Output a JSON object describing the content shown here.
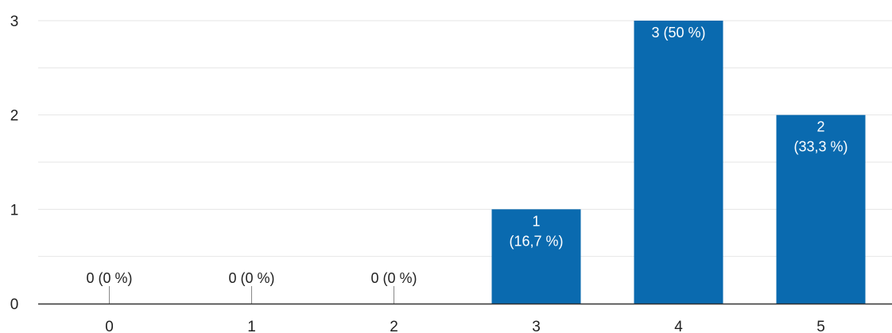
{
  "chart_data": {
    "type": "bar",
    "categories": [
      "0",
      "1",
      "2",
      "3",
      "4",
      "5"
    ],
    "values": [
      0,
      0,
      0,
      1,
      3,
      2
    ],
    "data_labels": [
      [
        "0 (0 %)"
      ],
      [
        "0 (0 %)"
      ],
      [
        "0 (0 %)"
      ],
      [
        "1",
        "(16,7 %)"
      ],
      [
        "3 (50 %)"
      ],
      [
        "2",
        "(33,3 %)"
      ]
    ],
    "y_ticks": [
      "0",
      "1",
      "2",
      "3"
    ],
    "ylim": [
      0,
      3
    ],
    "grid": true,
    "colors": {
      "bar": "#0a6aaf",
      "grid": "#e6e6e6",
      "axis": "#333333",
      "tick_text": "#222222",
      "label_on_bar": "#ffffff",
      "label_above": "#222222",
      "zero_marker": "#888888"
    }
  }
}
